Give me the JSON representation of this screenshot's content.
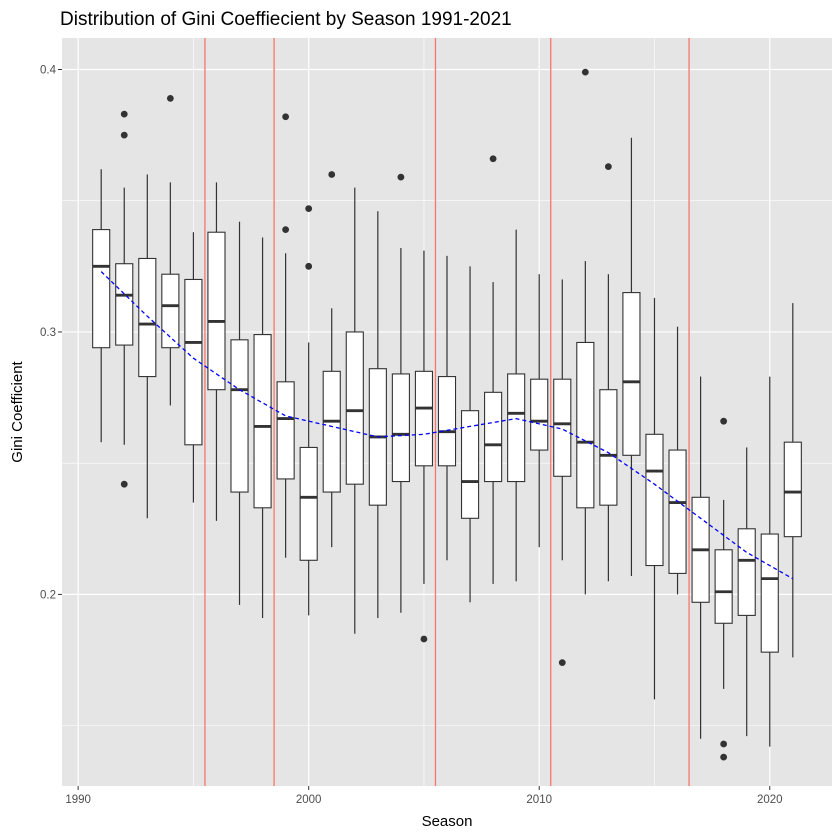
{
  "chart_data": {
    "type": "boxplot",
    "title": "Distribution of Gini Coeffiecient by Season 1991-2021",
    "xlabel": "Season",
    "ylabel": "Gini Coefficient",
    "xlim": [
      1989.3,
      2022.7
    ],
    "ylim": [
      0.127,
      0.412
    ],
    "x_ticks": [
      1990,
      2000,
      2010,
      2020
    ],
    "y_ticks": [
      0.2,
      0.3,
      0.4
    ],
    "grid": true,
    "legend": "none",
    "colors": {
      "panel": "#e5e5e5",
      "grid": "#ffffff",
      "box_fill": "#ffffff",
      "box_line": "#333333",
      "vertical_lines": "#f8766d",
      "trend": "#0000ff"
    },
    "vertical_lines": [
      1995.5,
      1998.5,
      2005.5,
      2010.5,
      2016.5
    ],
    "boxes": [
      {
        "season": 1991,
        "low": 0.258,
        "q1": 0.294,
        "median": 0.325,
        "q3": 0.339,
        "high": 0.362,
        "outliers": []
      },
      {
        "season": 1992,
        "low": 0.257,
        "q1": 0.295,
        "median": 0.314,
        "q3": 0.326,
        "high": 0.355,
        "outliers": [
          0.383,
          0.375,
          0.242
        ]
      },
      {
        "season": 1993,
        "low": 0.229,
        "q1": 0.283,
        "median": 0.303,
        "q3": 0.328,
        "high": 0.36,
        "outliers": []
      },
      {
        "season": 1994,
        "low": 0.272,
        "q1": 0.294,
        "median": 0.31,
        "q3": 0.322,
        "high": 0.357,
        "outliers": [
          0.389
        ]
      },
      {
        "season": 1995,
        "low": 0.235,
        "q1": 0.257,
        "median": 0.296,
        "q3": 0.32,
        "high": 0.338,
        "outliers": []
      },
      {
        "season": 1996,
        "low": 0.228,
        "q1": 0.278,
        "median": 0.304,
        "q3": 0.338,
        "high": 0.357,
        "outliers": []
      },
      {
        "season": 1997,
        "low": 0.196,
        "q1": 0.239,
        "median": 0.278,
        "q3": 0.297,
        "high": 0.342,
        "outliers": []
      },
      {
        "season": 1998,
        "low": 0.191,
        "q1": 0.233,
        "median": 0.264,
        "q3": 0.299,
        "high": 0.336,
        "outliers": []
      },
      {
        "season": 1999,
        "low": 0.214,
        "q1": 0.244,
        "median": 0.267,
        "q3": 0.281,
        "high": 0.33,
        "outliers": [
          0.382,
          0.339
        ]
      },
      {
        "season": 2000,
        "low": 0.192,
        "q1": 0.213,
        "median": 0.237,
        "q3": 0.256,
        "high": 0.296,
        "outliers": [
          0.347,
          0.325
        ]
      },
      {
        "season": 2001,
        "low": 0.218,
        "q1": 0.239,
        "median": 0.266,
        "q3": 0.285,
        "high": 0.309,
        "outliers": [
          0.36
        ]
      },
      {
        "season": 2002,
        "low": 0.185,
        "q1": 0.242,
        "median": 0.27,
        "q3": 0.3,
        "high": 0.355,
        "outliers": []
      },
      {
        "season": 2003,
        "low": 0.191,
        "q1": 0.234,
        "median": 0.26,
        "q3": 0.286,
        "high": 0.346,
        "outliers": []
      },
      {
        "season": 2004,
        "low": 0.193,
        "q1": 0.243,
        "median": 0.261,
        "q3": 0.284,
        "high": 0.332,
        "outliers": [
          0.359
        ]
      },
      {
        "season": 2005,
        "low": 0.204,
        "q1": 0.249,
        "median": 0.271,
        "q3": 0.285,
        "high": 0.331,
        "outliers": [
          0.183
        ]
      },
      {
        "season": 2006,
        "low": 0.213,
        "q1": 0.249,
        "median": 0.262,
        "q3": 0.283,
        "high": 0.329,
        "outliers": []
      },
      {
        "season": 2007,
        "low": 0.197,
        "q1": 0.229,
        "median": 0.243,
        "q3": 0.27,
        "high": 0.325,
        "outliers": []
      },
      {
        "season": 2008,
        "low": 0.204,
        "q1": 0.243,
        "median": 0.257,
        "q3": 0.277,
        "high": 0.319,
        "outliers": [
          0.366
        ]
      },
      {
        "season": 2009,
        "low": 0.205,
        "q1": 0.243,
        "median": 0.269,
        "q3": 0.284,
        "high": 0.339,
        "outliers": []
      },
      {
        "season": 2010,
        "low": 0.218,
        "q1": 0.255,
        "median": 0.266,
        "q3": 0.282,
        "high": 0.322,
        "outliers": []
      },
      {
        "season": 2011,
        "low": 0.213,
        "q1": 0.245,
        "median": 0.265,
        "q3": 0.282,
        "high": 0.32,
        "outliers": [
          0.174
        ]
      },
      {
        "season": 2012,
        "low": 0.2,
        "q1": 0.233,
        "median": 0.258,
        "q3": 0.296,
        "high": 0.327,
        "outliers": [
          0.399
        ]
      },
      {
        "season": 2013,
        "low": 0.205,
        "q1": 0.234,
        "median": 0.253,
        "q3": 0.278,
        "high": 0.322,
        "outliers": [
          0.363
        ]
      },
      {
        "season": 2014,
        "low": 0.207,
        "q1": 0.253,
        "median": 0.281,
        "q3": 0.315,
        "high": 0.374,
        "outliers": []
      },
      {
        "season": 2015,
        "low": 0.16,
        "q1": 0.211,
        "median": 0.247,
        "q3": 0.261,
        "high": 0.313,
        "outliers": []
      },
      {
        "season": 2016,
        "low": 0.2,
        "q1": 0.208,
        "median": 0.235,
        "q3": 0.255,
        "high": 0.302,
        "outliers": []
      },
      {
        "season": 2017,
        "low": 0.145,
        "q1": 0.197,
        "median": 0.217,
        "q3": 0.237,
        "high": 0.283,
        "outliers": []
      },
      {
        "season": 2018,
        "low": 0.164,
        "q1": 0.189,
        "median": 0.201,
        "q3": 0.217,
        "high": 0.236,
        "outliers": [
          0.266,
          0.143,
          0.138
        ]
      },
      {
        "season": 2019,
        "low": 0.146,
        "q1": 0.192,
        "median": 0.213,
        "q3": 0.225,
        "high": 0.256,
        "outliers": []
      },
      {
        "season": 2020,
        "low": 0.142,
        "q1": 0.178,
        "median": 0.206,
        "q3": 0.223,
        "high": 0.283,
        "outliers": []
      },
      {
        "season": 2021,
        "low": 0.176,
        "q1": 0.222,
        "median": 0.239,
        "q3": 0.258,
        "high": 0.311,
        "outliers": []
      }
    ],
    "trend_line": {
      "style": "dashed",
      "points": [
        [
          1991,
          0.323
        ],
        [
          1993,
          0.306
        ],
        [
          1995,
          0.29
        ],
        [
          1997,
          0.278
        ],
        [
          1999,
          0.268
        ],
        [
          2001,
          0.264
        ],
        [
          2003,
          0.26
        ],
        [
          2005,
          0.261
        ],
        [
          2007,
          0.264
        ],
        [
          2009,
          0.267
        ],
        [
          2011,
          0.263
        ],
        [
          2013,
          0.254
        ],
        [
          2015,
          0.242
        ],
        [
          2017,
          0.229
        ],
        [
          2019,
          0.216
        ],
        [
          2021,
          0.206
        ]
      ]
    }
  }
}
